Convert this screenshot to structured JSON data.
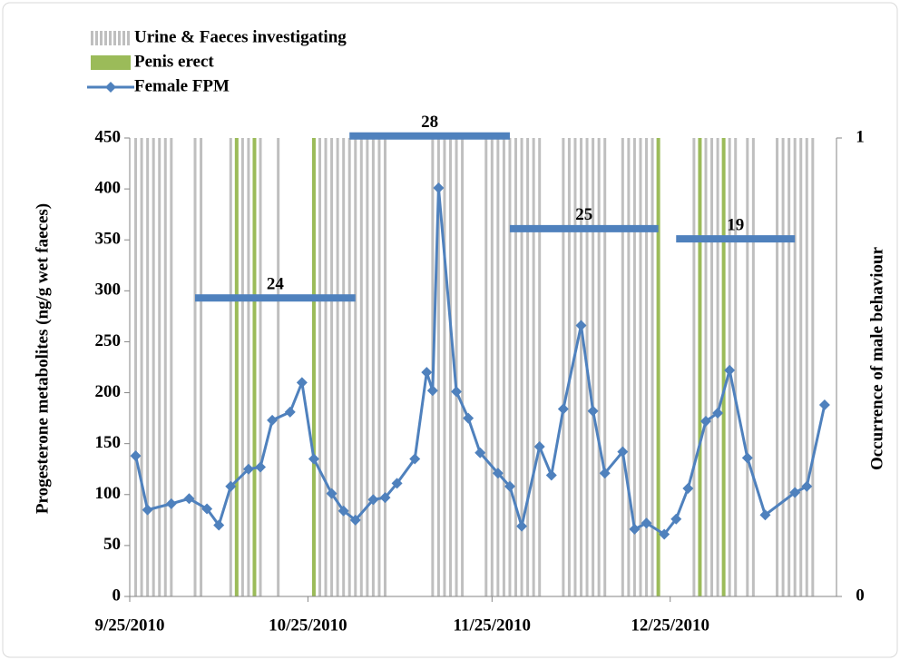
{
  "chart_data": {
    "type": "combo",
    "y_label": "Progesterone metabolites (ng/g wet faeces)",
    "y2_label": "Occurrence of male behaviour",
    "legend": "top-left",
    "xlim": [
      "2010-09-25",
      "2011-01-22"
    ],
    "xticks": [
      {
        "value": "2010-09-25",
        "label": "9/25/2010"
      },
      {
        "value": "2010-10-25",
        "label": "10/25/2010"
      },
      {
        "value": "2010-11-25",
        "label": "11/25/2010"
      },
      {
        "value": "2010-12-25",
        "label": "12/25/2010"
      }
    ],
    "ylim": [
      0,
      450
    ],
    "yticks": [
      0,
      50,
      100,
      150,
      200,
      250,
      300,
      350,
      400,
      450
    ],
    "y2lim": [
      0,
      1
    ],
    "y2ticks": [
      0,
      1
    ],
    "series": [
      {
        "name": "Urine & Faeces investigating",
        "type": "bar",
        "axis": "y2",
        "color": "#bfbfbf",
        "x": [
          "2010-09-26",
          "2010-09-27",
          "2010-09-28",
          "2010-09-29",
          "2010-09-30",
          "2010-10-01",
          "2010-10-02",
          "2010-10-06",
          "2010-10-07",
          "2010-10-12",
          "2010-10-14",
          "2010-10-15",
          "2010-10-17",
          "2010-10-20",
          "2010-10-27",
          "2010-10-28",
          "2010-10-29",
          "2010-10-30",
          "2010-10-31",
          "2010-11-01",
          "2010-11-02",
          "2010-11-03",
          "2010-11-04",
          "2010-11-05",
          "2010-11-06",
          "2010-11-07",
          "2010-11-15",
          "2010-11-16",
          "2010-11-17",
          "2010-11-18",
          "2010-11-19",
          "2010-11-20",
          "2010-11-24",
          "2010-11-25",
          "2010-11-26",
          "2010-11-27",
          "2010-11-28",
          "2010-11-29",
          "2010-11-30",
          "2010-12-01",
          "2010-12-02",
          "2010-12-03",
          "2010-12-07",
          "2010-12-08",
          "2010-12-09",
          "2010-12-10",
          "2010-12-11",
          "2010-12-12",
          "2010-12-13",
          "2010-12-14",
          "2010-12-17",
          "2010-12-18",
          "2010-12-19",
          "2010-12-20",
          "2010-12-21",
          "2010-12-22",
          "2010-12-29",
          "2010-12-30",
          "2010-12-31",
          "2011-01-01",
          "2011-01-02",
          "2011-01-03",
          "2011-01-04",
          "2011-01-05",
          "2011-01-07",
          "2011-01-08",
          "2011-01-12",
          "2011-01-13",
          "2011-01-14",
          "2011-01-15",
          "2011-01-16",
          "2011-01-17",
          "2011-01-18"
        ],
        "values": [
          1,
          1,
          1,
          1,
          1,
          1,
          1,
          1,
          1,
          1,
          1,
          1,
          1,
          1,
          1,
          1,
          1,
          1,
          1,
          1,
          1,
          1,
          1,
          1,
          1,
          1,
          1,
          1,
          1,
          1,
          1,
          1,
          1,
          1,
          1,
          1,
          1,
          1,
          1,
          1,
          1,
          1,
          1,
          1,
          1,
          1,
          1,
          1,
          1,
          1,
          1,
          1,
          1,
          1,
          1,
          1,
          1,
          1,
          1,
          1,
          1,
          1,
          1,
          1,
          1,
          1,
          1,
          1,
          1,
          1,
          1,
          1,
          1
        ]
      },
      {
        "name": "Penis erect",
        "type": "bar",
        "axis": "y2",
        "color": "#9bbb59",
        "x": [
          "2010-10-13",
          "2010-10-16",
          "2010-10-26",
          "2010-12-23",
          "2010-12-30",
          "2011-01-03"
        ],
        "values": [
          1,
          1,
          1,
          1,
          1,
          1
        ]
      },
      {
        "name": "Female FPM",
        "type": "line",
        "color": "#4f81bd",
        "x": [
          "2010-09-26",
          "2010-09-28",
          "2010-10-02",
          "2010-10-05",
          "2010-10-08",
          "2010-10-10",
          "2010-10-12",
          "2010-10-15",
          "2010-10-17",
          "2010-10-19",
          "2010-10-22",
          "2010-10-24",
          "2010-10-26",
          "2010-10-29",
          "2010-10-31",
          "2010-11-02",
          "2010-11-05",
          "2010-11-07",
          "2010-11-09",
          "2010-11-12",
          "2010-11-14",
          "2010-11-15",
          "2010-11-16",
          "2010-11-19",
          "2010-11-21",
          "2010-11-23",
          "2010-11-26",
          "2010-11-28",
          "2010-11-30",
          "2010-12-03",
          "2010-12-05",
          "2010-12-07",
          "2010-12-10",
          "2010-12-12",
          "2010-12-14",
          "2010-12-17",
          "2010-12-19",
          "2010-12-21",
          "2010-12-24",
          "2010-12-26",
          "2010-12-28",
          "2010-12-31",
          "2011-01-02",
          "2011-01-04",
          "2011-01-07",
          "2011-01-10",
          "2011-01-15",
          "2011-01-17",
          "2011-01-20"
        ],
        "values": [
          138,
          85,
          91,
          96,
          86,
          70,
          108,
          125,
          127,
          173,
          181,
          210,
          135,
          101,
          84,
          75,
          95,
          97,
          111,
          135,
          220,
          202,
          401,
          201,
          175,
          141,
          121,
          108,
          69,
          147,
          119,
          184,
          266,
          182,
          121,
          142,
          66,
          72,
          61,
          76,
          106,
          172,
          180,
          222,
          136,
          80,
          102,
          108,
          188
        ]
      }
    ],
    "annotations": [
      {
        "text": 24,
        "start": "2010-10-06",
        "end": "2010-11-02",
        "y": 293
      },
      {
        "text": 28,
        "start": "2010-11-01",
        "end": "2010-11-28",
        "y": 452
      },
      {
        "text": 25,
        "start": "2010-11-28",
        "end": "2010-12-23",
        "y": 361
      },
      {
        "text": 19,
        "start": "2010-12-26",
        "end": "2011-01-15",
        "y": 351
      }
    ]
  }
}
